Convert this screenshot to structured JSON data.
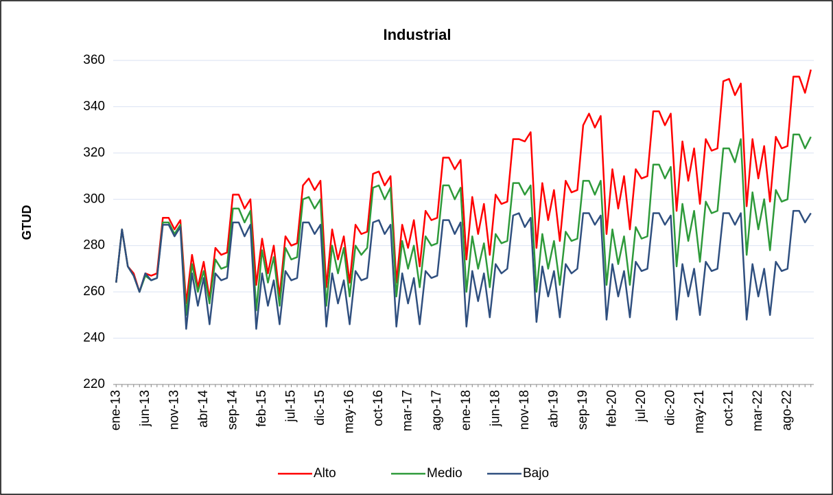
{
  "chart_data": {
    "type": "line",
    "title": "Industrial",
    "y_label": "GTUD",
    "categories": [
      "ene-13",
      null,
      null,
      null,
      null,
      "jun-13",
      null,
      null,
      null,
      null,
      "nov-13",
      null,
      null,
      null,
      null,
      "abr-14",
      null,
      null,
      null,
      null,
      "sep-14",
      null,
      null,
      null,
      null,
      "feb-15",
      null,
      null,
      null,
      null,
      "jul-15",
      null,
      null,
      null,
      null,
      "dic-15",
      null,
      null,
      null,
      null,
      "may-16",
      null,
      null,
      null,
      null,
      "oct-16",
      null,
      null,
      null,
      null,
      "mar-17",
      null,
      null,
      null,
      null,
      "ago-17",
      null,
      null,
      null,
      null,
      "ene-18",
      null,
      null,
      null,
      null,
      "jun-18",
      null,
      null,
      null,
      null,
      "nov-18",
      null,
      null,
      null,
      null,
      "abr-19",
      null,
      null,
      null,
      null,
      "sep-19",
      null,
      null,
      null,
      null,
      "feb-20",
      null,
      null,
      null,
      null,
      "jul-20",
      null,
      null,
      null,
      null,
      "dic-20",
      null,
      null,
      null,
      null,
      "may-21",
      null,
      null,
      null,
      null,
      "oct-21",
      null,
      null,
      null,
      null,
      "mar-22",
      null,
      null,
      null,
      null,
      "ago-22",
      null,
      null,
      null,
      null
    ],
    "series": [
      {
        "name": "Alto",
        "color": "#ff0000",
        "values": [
          264,
          287,
          271,
          268,
          260,
          268,
          267,
          268,
          292,
          292,
          287,
          291,
          255,
          276,
          262,
          273,
          257,
          279,
          276,
          277,
          302,
          302,
          296,
          300,
          263,
          283,
          268,
          280,
          258,
          284,
          280,
          281,
          306,
          309,
          304,
          308,
          262,
          287,
          274,
          284,
          264,
          289,
          285,
          286,
          311,
          312,
          306,
          310,
          264,
          289,
          279,
          291,
          271,
          295,
          291,
          292,
          318,
          318,
          313,
          317,
          274,
          301,
          285,
          298,
          276,
          302,
          298,
          299,
          326,
          326,
          325,
          329,
          279,
          307,
          291,
          304,
          282,
          308,
          303,
          304,
          332,
          337,
          331,
          336,
          285,
          313,
          296,
          310,
          287,
          313,
          309,
          310,
          338,
          338,
          332,
          337,
          295,
          325,
          308,
          322,
          298,
          326,
          321,
          322,
          351,
          352,
          345,
          350,
          297,
          326,
          309,
          323,
          299,
          327,
          322,
          323,
          353,
          353,
          346,
          356
        ]
      },
      {
        "name": "Medio",
        "color": "#2e9a3a",
        "values": [
          264,
          287,
          271,
          267,
          260,
          267,
          265,
          266,
          290,
          290,
          285,
          289,
          250,
          272,
          260,
          269,
          255,
          274,
          270,
          271,
          296,
          296,
          290,
          295,
          252,
          278,
          264,
          275,
          254,
          279,
          274,
          275,
          300,
          301,
          296,
          300,
          254,
          280,
          268,
          279,
          258,
          280,
          276,
          279,
          305,
          306,
          300,
          305,
          258,
          282,
          270,
          280,
          262,
          284,
          280,
          281,
          306,
          306,
          300,
          305,
          260,
          284,
          270,
          281,
          262,
          285,
          281,
          282,
          307,
          307,
          302,
          306,
          260,
          285,
          270,
          282,
          263,
          286,
          282,
          283,
          308,
          308,
          302,
          308,
          263,
          287,
          272,
          284,
          263,
          288,
          283,
          284,
          315,
          315,
          309,
          314,
          271,
          298,
          282,
          295,
          273,
          299,
          294,
          295,
          322,
          322,
          316,
          326,
          276,
          303,
          287,
          300,
          278,
          304,
          299,
          300,
          328,
          328,
          322,
          327
        ]
      },
      {
        "name": "Bajo",
        "color": "#2f4f7f",
        "values": [
          264,
          287,
          271,
          267,
          260,
          268,
          265,
          266,
          289,
          289,
          284,
          288,
          244,
          268,
          254,
          266,
          246,
          268,
          265,
          266,
          290,
          290,
          284,
          289,
          244,
          268,
          254,
          265,
          246,
          269,
          265,
          266,
          290,
          290,
          285,
          289,
          245,
          268,
          255,
          265,
          246,
          269,
          265,
          266,
          290,
          291,
          285,
          289,
          245,
          268,
          255,
          266,
          246,
          269,
          266,
          267,
          291,
          291,
          285,
          290,
          245,
          269,
          256,
          268,
          249,
          272,
          268,
          270,
          293,
          294,
          288,
          292,
          247,
          271,
          258,
          269,
          249,
          272,
          268,
          270,
          294,
          294,
          289,
          293,
          248,
          272,
          258,
          269,
          249,
          273,
          269,
          270,
          294,
          294,
          289,
          293,
          248,
          272,
          258,
          270,
          250,
          273,
          269,
          270,
          294,
          294,
          289,
          294,
          248,
          272,
          258,
          270,
          250,
          273,
          269,
          270,
          295,
          295,
          290,
          294
        ]
      }
    ],
    "ylim": [
      220,
      360
    ],
    "yticks": [
      220,
      240,
      260,
      280,
      300,
      320,
      340,
      360
    ],
    "grid": true,
    "legend": "bottom"
  }
}
